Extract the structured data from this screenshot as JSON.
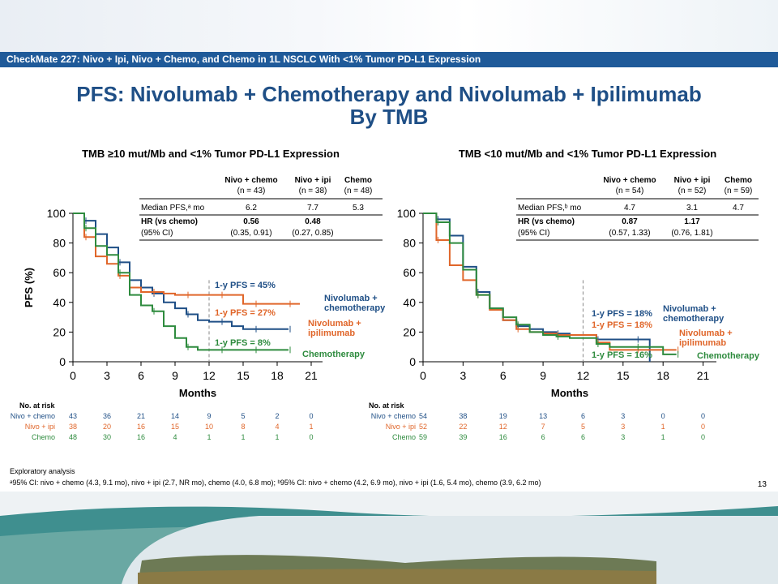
{
  "banner": "CheckMate 227: Nivo + Ipi, Nivo + Chemo, and Chemo in 1L NSCLC With <1% Tumor PD-L1 Expression",
  "title_line1": "PFS: Nivolumab + Chemotherapy and Nivolumab + Ipilimumab",
  "title_line2": "By TMB",
  "footnote_line1": "Exploratory analysis",
  "footnote_line2": "ᵃ95% CI: nivo + chemo (4.3, 9.1 mo), nivo + ipi (2.7, NR mo), chemo (4.0, 6.8 mo); ᵇ95% CI: nivo + chemo (4.2, 6.9 mo), nivo + ipi (1.6, 5.4 mo), chemo (3.9, 6.2 mo)",
  "slide_number": "13",
  "colors": {
    "nivo_chemo": "#1f4f86",
    "nivo_ipi": "#e0662a",
    "chemo": "#2e8b3e",
    "banner": "#1f5a99"
  },
  "chart_data": [
    {
      "type": "line",
      "title": "TMB ≥10 mut/Mb and <1% Tumor PD-L1 Expression",
      "xlabel": "Months",
      "ylabel": "PFS (%)",
      "xlim": [
        0,
        22
      ],
      "ylim": [
        0,
        100
      ],
      "xticks": [
        0,
        3,
        6,
        9,
        12,
        15,
        18,
        21
      ],
      "yticks": [
        0,
        20,
        40,
        60,
        80,
        100
      ],
      "table": {
        "headers": [
          [
            "Nivo + chemo",
            "(n = 43)"
          ],
          [
            "Nivo + ipi",
            "(n = 38)"
          ],
          [
            "Chemo",
            "(n = 48)"
          ]
        ],
        "median_label": "Median PFS,ᵃ mo",
        "median": [
          "6.2",
          "7.7",
          "5.3"
        ],
        "hr_label": "HR (vs chemo)",
        "ci_label": "(95% CI)",
        "hr": [
          "0.56",
          "0.48",
          ""
        ],
        "ci": [
          "(0.35, 0.91)",
          "(0.27, 0.85)",
          ""
        ]
      },
      "series": [
        {
          "name": "Nivolumab + chemotherapy",
          "label_lines": [
            "Nivolumab +",
            "chemotherapy"
          ],
          "color": "#1f4f86",
          "x": [
            0,
            1,
            2,
            3,
            4,
            5,
            6,
            7,
            8,
            9,
            10,
            11,
            12,
            13,
            14,
            15,
            16,
            17,
            18,
            19
          ],
          "y": [
            100,
            95,
            86,
            77,
            67,
            55,
            50,
            46,
            40,
            36,
            32,
            28,
            27,
            27,
            24,
            22,
            22,
            22,
            22,
            22
          ]
        },
        {
          "name": "Nivolumab + ipilimumab",
          "label_lines": [
            "Nivolumab +",
            "ipilimumab"
          ],
          "color": "#e0662a",
          "x": [
            0,
            1,
            2,
            3,
            4,
            5,
            6,
            7,
            8,
            9,
            10,
            11,
            12,
            13,
            14,
            15,
            16,
            17,
            18,
            19,
            20
          ],
          "y": [
            100,
            84,
            71,
            66,
            58,
            50,
            47,
            47,
            46,
            45,
            45,
            45,
            45,
            45,
            45,
            39,
            39,
            39,
            39,
            39,
            39
          ]
        },
        {
          "name": "Chemotherapy",
          "label_lines": [
            "Chemotherapy"
          ],
          "color": "#2e8b3e",
          "x": [
            0,
            1,
            2,
            3,
            4,
            5,
            6,
            7,
            8,
            9,
            10,
            11,
            12,
            13,
            14,
            15,
            16,
            17,
            18,
            19
          ],
          "y": [
            100,
            90,
            78,
            72,
            60,
            45,
            38,
            34,
            24,
            16,
            10,
            8,
            8,
            8,
            8,
            8,
            8,
            8,
            8,
            8
          ]
        }
      ],
      "annotations": [
        "1-y PFS = 45%",
        "1-y PFS = 27%",
        "1-y PFS = 8%"
      ],
      "risk_table": {
        "header": "No. at risk",
        "rows": [
          {
            "label": "Nivo + chemo",
            "values": [
              43,
              36,
              21,
              14,
              9,
              5,
              2,
              0
            ]
          },
          {
            "label": "Nivo + ipi",
            "values": [
              38,
              20,
              16,
              15,
              10,
              8,
              4,
              1
            ]
          },
          {
            "label": "Chemo",
            "values": [
              48,
              30,
              16,
              4,
              1,
              1,
              1,
              0
            ]
          }
        ]
      }
    },
    {
      "type": "line",
      "title": "TMB <10 mut/Mb and <1% Tumor PD-L1 Expression",
      "xlabel": "Months",
      "ylabel": "",
      "xlim": [
        0,
        22
      ],
      "ylim": [
        0,
        100
      ],
      "xticks": [
        0,
        3,
        6,
        9,
        12,
        15,
        18,
        21
      ],
      "yticks": [
        0,
        20,
        40,
        60,
        80,
        100
      ],
      "table": {
        "headers": [
          [
            "Nivo + chemo",
            "(n = 54)"
          ],
          [
            "Nivo + ipi",
            "(n = 52)"
          ],
          [
            "Chemo",
            "(n = 59)"
          ]
        ],
        "median_label": "Median PFS,ᵇ mo",
        "median": [
          "4.7",
          "3.1",
          "4.7"
        ],
        "hr_label": "HR (vs chemo)",
        "ci_label": "(95% CI)",
        "hr": [
          "0.87",
          "1.17",
          ""
        ],
        "ci": [
          "(0.57, 1.33)",
          "(0.76, 1.81)",
          ""
        ]
      },
      "series": [
        {
          "name": "Nivolumab + chemotherapy",
          "label_lines": [
            "Nivolumab +",
            "chemotherapy"
          ],
          "color": "#1f4f86",
          "x": [
            0,
            1,
            2,
            3,
            4,
            5,
            6,
            7,
            8,
            9,
            10,
            11,
            12,
            13,
            14,
            15,
            16,
            17
          ],
          "y": [
            100,
            96,
            85,
            64,
            47,
            36,
            28,
            24,
            22,
            20,
            19,
            18,
            18,
            15,
            15,
            15,
            15,
            0
          ]
        },
        {
          "name": "Nivolumab + ipilimumab",
          "label_lines": [
            "Nivolumab +",
            "ipilimumab"
          ],
          "color": "#e0662a",
          "x": [
            0,
            1,
            2,
            3,
            4,
            5,
            6,
            7,
            8,
            9,
            10,
            11,
            12,
            13,
            14,
            15,
            16,
            17,
            18,
            19
          ],
          "y": [
            100,
            82,
            65,
            55,
            45,
            35,
            28,
            22,
            20,
            19,
            18,
            18,
            18,
            13,
            8,
            8,
            8,
            8,
            8,
            8
          ]
        },
        {
          "name": "Chemotherapy",
          "label_lines": [
            "Chemotherapy"
          ],
          "color": "#2e8b3e",
          "x": [
            0,
            1,
            2,
            3,
            4,
            5,
            6,
            7,
            8,
            9,
            10,
            11,
            12,
            13,
            14,
            15,
            16,
            17,
            18,
            19
          ],
          "y": [
            100,
            94,
            80,
            62,
            45,
            36,
            30,
            25,
            20,
            18,
            17,
            16,
            16,
            12,
            10,
            10,
            10,
            10,
            5,
            5
          ]
        }
      ],
      "annotations": [
        "1-y PFS = 18%",
        "1-y PFS = 18%",
        "1-y PFS = 16%"
      ],
      "risk_table": {
        "header": "No. at risk",
        "rows": [
          {
            "label": "Nivo + chemo",
            "values": [
              54,
              38,
              19,
              13,
              6,
              3,
              0,
              0
            ]
          },
          {
            "label": "Nivo + ipi",
            "values": [
              52,
              22,
              12,
              7,
              5,
              3,
              1,
              0
            ]
          },
          {
            "label": "Chemo",
            "values": [
              59,
              39,
              16,
              6,
              6,
              3,
              1,
              0
            ]
          }
        ]
      }
    }
  ]
}
